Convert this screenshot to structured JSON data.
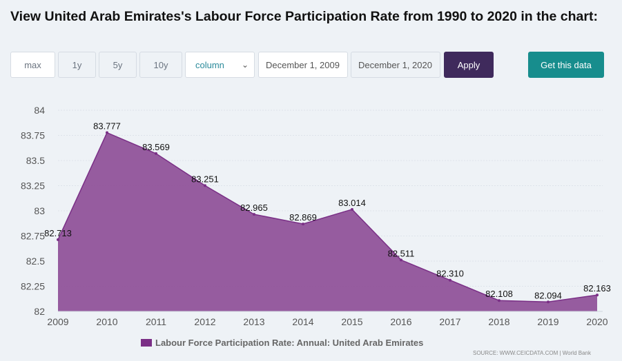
{
  "title": "View United Arab Emirates's Labour Force Participation Rate from 1990 to 2020 in the chart:",
  "controls": {
    "max": "max",
    "y1": "1y",
    "y5": "5y",
    "y10": "10y",
    "chart_type": "column",
    "start_date": "December 1, 2009",
    "end_date": "December 1, 2020",
    "apply": "Apply",
    "get_data": "Get this data"
  },
  "colors": {
    "area_fill": "#8e4f97",
    "area_line": "#7a2f86",
    "apply_bg": "#3f2a5c",
    "get_data_bg": "#178d8d"
  },
  "chart_data": {
    "type": "area",
    "x": [
      "2009",
      "2010",
      "2011",
      "2012",
      "2013",
      "2014",
      "2015",
      "2016",
      "2017",
      "2018",
      "2019",
      "2020"
    ],
    "series": [
      {
        "name": "Labour Force Participation Rate: Annual: United Arab Emirates",
        "values": [
          82.713,
          83.777,
          83.569,
          83.251,
          82.965,
          82.869,
          83.014,
          82.511,
          82.31,
          82.108,
          82.094,
          82.163
        ],
        "labels": [
          "82.713",
          "83.777",
          "83.569",
          "83.251",
          "82.965",
          "82.869",
          "83.014",
          "82.511",
          "82.310",
          "82.108",
          "82.094",
          "82.163"
        ]
      }
    ],
    "y_ticks": [
      "82",
      "82.25",
      "82.5",
      "82.75",
      "83",
      "83.25",
      "83.5",
      "83.75",
      "84"
    ],
    "ylim": [
      82,
      84
    ],
    "grid": true,
    "legend": "bottom"
  },
  "source": "SOURCE: WWW.CEICDATA.COM | World Bank"
}
